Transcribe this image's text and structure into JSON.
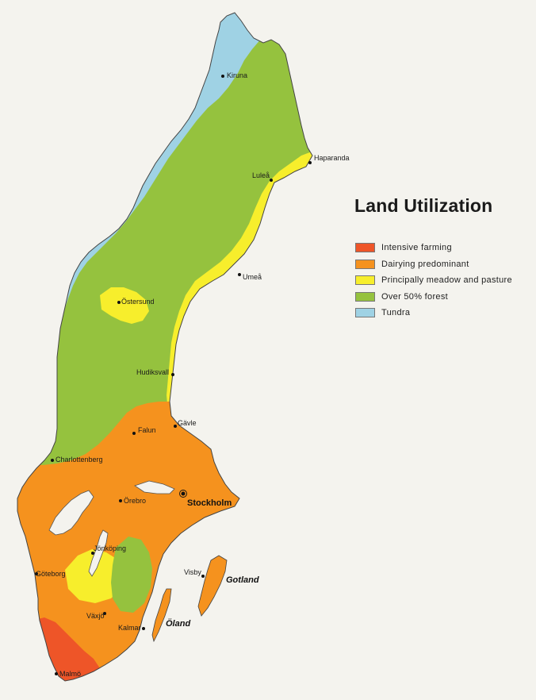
{
  "map": {
    "title": "Land Utilization",
    "colors": {
      "background": "#f4f3ee",
      "water": "#f4f3ee",
      "intensive_farming": "#ee5528",
      "dairying": "#f5921e",
      "meadow": "#f7ee2c",
      "forest": "#95c23e",
      "tundra": "#9fd2e4"
    },
    "legend": [
      {
        "label": "Intensive farming",
        "color": "#ee5528"
      },
      {
        "label": "Dairying predominant",
        "color": "#f5921e"
      },
      {
        "label": "Principally meadow and pasture",
        "color": "#f7ee2c"
      },
      {
        "label": "Over 50% forest",
        "color": "#95c23e"
      },
      {
        "label": "Tundra",
        "color": "#9fd2e4"
      }
    ],
    "cities": {
      "kiruna": "Kiruna",
      "haparanda": "Haparanda",
      "lulea": "Luleå",
      "umea": "Umeå",
      "ostersund": "Östersund",
      "hudiksvall": "Hudiksvall",
      "gavle": "Gävle",
      "falun": "Falun",
      "charlottenberg": "Charlottenberg",
      "orebro": "Örebro",
      "stockholm": "Stockholm",
      "goteborg": "Göteborg",
      "jonkoping": "Jönköping",
      "vaxjo": "Växjö",
      "kalmar": "Kalmar",
      "visby": "Visby",
      "malmo": "Malmö"
    },
    "islands": {
      "gotland": "Gotland",
      "oland": "Öland"
    }
  }
}
